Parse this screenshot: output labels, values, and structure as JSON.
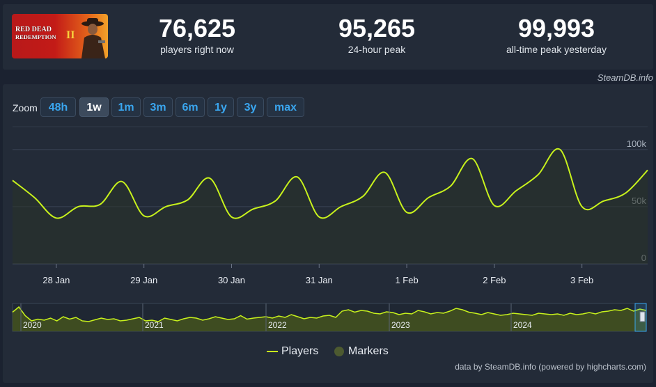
{
  "header": {
    "logo_text_line1": "RED DEAD",
    "logo_text_line2": "REDEMPTION",
    "logo_numeral": "II",
    "stats": [
      {
        "value": "76,625",
        "label": "players right now"
      },
      {
        "value": "95,265",
        "label": "24-hour peak"
      },
      {
        "value": "99,993",
        "label": "all-time peak yesterday"
      }
    ],
    "credit": "SteamDB.info"
  },
  "zoom": {
    "label": "Zoom",
    "buttons": [
      "48h",
      "1w",
      "1m",
      "3m",
      "6m",
      "1y",
      "3y",
      "max"
    ],
    "active": "1w"
  },
  "legend": {
    "players": "Players",
    "markers": "Markers"
  },
  "footer_credit": "data by SteamDB.info (powered by highcharts.com)",
  "colors": {
    "line": "#c8f21c",
    "navigator_fill": "#4a5a1c",
    "marker_dot": "#4d5a30",
    "background": "#1b2230",
    "panel": "#232b38",
    "accent": "#3aa6ef"
  },
  "chart_data": {
    "type": "line",
    "series": [
      {
        "name": "Players",
        "x": [
          "2025-01-27 12:00",
          "2025-01-27 18:00",
          "2025-01-28 00:00",
          "2025-01-28 06:00",
          "2025-01-28 12:00",
          "2025-01-28 18:00",
          "2025-01-29 00:00",
          "2025-01-29 06:00",
          "2025-01-29 12:00",
          "2025-01-29 18:00",
          "2025-01-30 00:00",
          "2025-01-30 06:00",
          "2025-01-30 12:00",
          "2025-01-30 18:00",
          "2025-01-31 00:00",
          "2025-01-31 06:00",
          "2025-01-31 12:00",
          "2025-01-31 18:00",
          "2025-02-01 00:00",
          "2025-02-01 06:00",
          "2025-02-01 12:00",
          "2025-02-01 18:00",
          "2025-02-02 00:00",
          "2025-02-02 06:00",
          "2025-02-02 12:00",
          "2025-02-02 18:00",
          "2025-02-03 00:00",
          "2025-02-03 06:00",
          "2025-02-03 12:00",
          "2025-02-03 18:00"
        ],
        "values": [
          73000,
          58000,
          40000,
          50000,
          52000,
          72000,
          42000,
          50000,
          56000,
          75000,
          41000,
          48000,
          55000,
          76000,
          41000,
          50000,
          59000,
          80000,
          45000,
          58000,
          68000,
          92000,
          51000,
          64000,
          78000,
          100000,
          50000,
          55000,
          62000,
          82000
        ]
      }
    ],
    "x_ticks": [
      "28 Jan",
      "29 Jan",
      "30 Jan",
      "31 Jan",
      "1 Feb",
      "2 Feb",
      "3 Feb"
    ],
    "y_ticks": [
      "0",
      "50k",
      "100k"
    ],
    "ylim": [
      0,
      120000
    ],
    "navigator_labels": [
      "2020",
      "2021",
      "2022",
      "2023",
      "2024"
    ],
    "navigator_values": [
      55,
      70,
      45,
      30,
      35,
      32,
      38,
      30,
      42,
      35,
      40,
      30,
      28,
      33,
      38,
      34,
      36,
      30,
      32,
      36,
      40,
      30,
      32,
      28,
      38,
      34,
      30,
      36,
      40,
      38,
      32,
      36,
      42,
      38,
      34,
      36,
      45,
      35,
      38,
      40,
      42,
      38,
      44,
      40,
      48,
      42,
      36,
      40,
      38,
      44,
      46,
      40,
      58,
      62,
      55,
      60,
      58,
      52,
      50,
      56,
      54,
      48,
      52,
      50,
      60,
      56,
      50,
      54,
      52,
      58,
      66,
      62,
      55,
      52,
      48,
      54,
      50,
      46,
      48,
      52,
      50,
      48,
      46,
      52,
      50,
      48,
      50,
      46,
      52,
      48,
      50,
      54,
      50,
      56,
      58,
      62,
      60,
      66,
      58,
      64,
      60
    ]
  }
}
